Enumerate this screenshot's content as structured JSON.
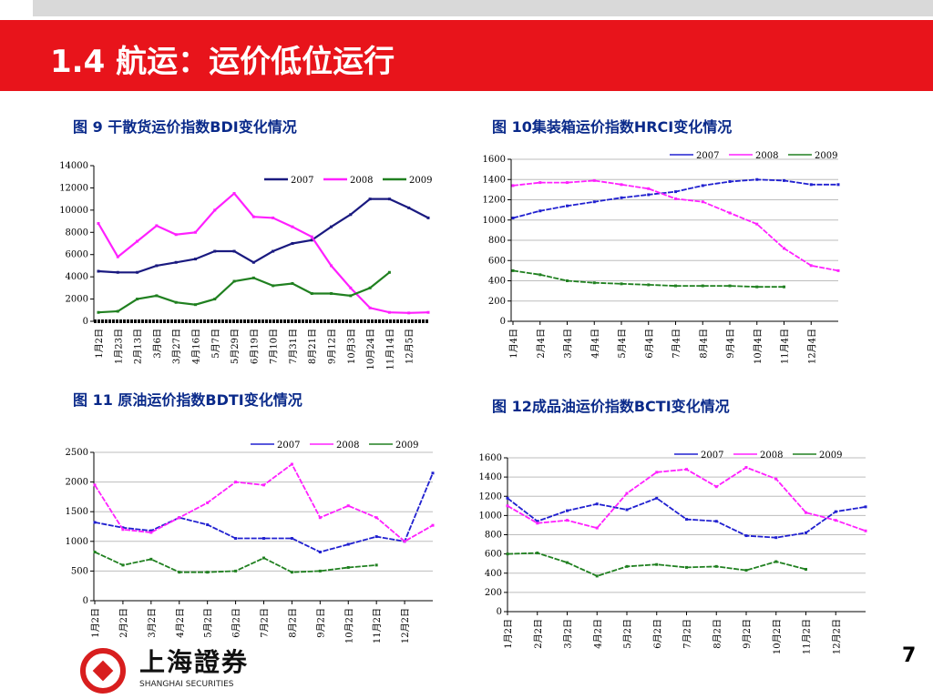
{
  "slide": {
    "title": "1.4 航运：运价低位运行",
    "page_number": "7",
    "logo": {
      "cn": "上海證券",
      "en": "SHANGHAI SECURITIES"
    }
  },
  "colors": {
    "red_bar": "#e8141b",
    "s2007_bdi": "#1a1a80",
    "s2007": "#2020d0",
    "s2008": "#ff20ff",
    "s2009": "#208020"
  },
  "chart_data": [
    {
      "title": "图 9 干散货运价指数BDI变化情况",
      "type": "line",
      "categories": [
        "1月2日",
        "1月23日",
        "2月13日",
        "3月6日",
        "3月27日",
        "4月16日",
        "5月7日",
        "5月29日",
        "6月19日",
        "7月10日",
        "7月31日",
        "8月21日",
        "9月12日",
        "10月3日",
        "10月24日",
        "11月14日",
        "12月5日",
        ""
      ],
      "ylim": [
        0,
        14000
      ],
      "yticks": [
        0,
        2000,
        4000,
        6000,
        8000,
        10000,
        12000,
        14000
      ],
      "grid": false,
      "legend": "top-right",
      "series": [
        {
          "name": "2007",
          "values": [
            4500,
            4400,
            4400,
            5000,
            5300,
            5600,
            6300,
            6300,
            5300,
            6300,
            7000,
            7300,
            8500,
            9600,
            11000,
            11000,
            10200,
            9300
          ]
        },
        {
          "name": "2008",
          "values": [
            8800,
            5800,
            7200,
            8600,
            7800,
            8000,
            10000,
            11500,
            9400,
            9300,
            8500,
            7600,
            5000,
            3000,
            1200,
            800,
            750,
            800
          ]
        },
        {
          "name": "2009",
          "values": [
            800,
            900,
            2000,
            2300,
            1700,
            1500,
            2000,
            3600,
            3900,
            3200,
            3400,
            2500,
            2500,
            2300,
            3000,
            4400,
            null,
            null
          ]
        }
      ]
    },
    {
      "title": "图 10集装箱运价指数HRCI变化情况",
      "type": "line",
      "categories": [
        "1月4日",
        "2月4日",
        "3月4日",
        "4月4日",
        "5月4日",
        "6月4日",
        "7月4日",
        "8月4日",
        "9月4日",
        "10月4日",
        "11月4日",
        "12月4日",
        ""
      ],
      "ylim": [
        0,
        1600
      ],
      "yticks": [
        0,
        200,
        400,
        600,
        800,
        1000,
        1200,
        1400,
        1600
      ],
      "grid": true,
      "legend": "top-right",
      "series": [
        {
          "name": "2007",
          "values": [
            1020,
            1090,
            1140,
            1180,
            1220,
            1250,
            1280,
            1340,
            1380,
            1400,
            1390,
            1350,
            1350
          ]
        },
        {
          "name": "2008",
          "values": [
            1340,
            1370,
            1370,
            1390,
            1350,
            1310,
            1210,
            1180,
            1070,
            960,
            720,
            550,
            500
          ]
        },
        {
          "name": "2009",
          "values": [
            500,
            460,
            400,
            380,
            370,
            360,
            350,
            350,
            350,
            340,
            340,
            null,
            null
          ]
        }
      ]
    },
    {
      "title": "图 11 原油运价指数BDTI变化情况",
      "type": "line",
      "categories": [
        "1月2日",
        "2月2日",
        "3月2日",
        "4月2日",
        "5月2日",
        "6月2日",
        "7月2日",
        "8月2日",
        "9月2日",
        "10月2日",
        "11月2日",
        "12月2日",
        ""
      ],
      "ylim": [
        0,
        2500
      ],
      "yticks": [
        0,
        500,
        1000,
        1500,
        2000,
        2500
      ],
      "grid": true,
      "legend": "top-right",
      "series": [
        {
          "name": "2007",
          "values": [
            1320,
            1230,
            1180,
            1400,
            1280,
            1050,
            1050,
            1050,
            820,
            950,
            1080,
            1000,
            2150
          ]
        },
        {
          "name": "2008",
          "values": [
            1950,
            1200,
            1150,
            1400,
            1650,
            2000,
            1950,
            2300,
            1400,
            1600,
            1400,
            1000,
            1270
          ]
        },
        {
          "name": "2009",
          "values": [
            820,
            600,
            700,
            480,
            480,
            500,
            720,
            480,
            500,
            560,
            600,
            null,
            null
          ]
        }
      ]
    },
    {
      "title": "图 12成品油运价指数BCTI变化情况",
      "type": "line",
      "categories": [
        "1月2日",
        "2月2日",
        "3月2日",
        "4月2日",
        "5月2日",
        "6月2日",
        "7月2日",
        "8月2日",
        "9月2日",
        "10月2日",
        "11月2日",
        "12月2日",
        ""
      ],
      "ylim": [
        0,
        1600
      ],
      "yticks": [
        0,
        200,
        400,
        600,
        800,
        1000,
        1200,
        1400,
        1600
      ],
      "grid": true,
      "legend": "top-right",
      "series": [
        {
          "name": "2007",
          "values": [
            1180,
            940,
            1050,
            1120,
            1060,
            1180,
            960,
            940,
            790,
            770,
            820,
            1040,
            1090
          ]
        },
        {
          "name": "2008",
          "values": [
            1100,
            920,
            950,
            870,
            1230,
            1450,
            1480,
            1300,
            1500,
            1380,
            1030,
            950,
            840
          ]
        },
        {
          "name": "2009",
          "values": [
            600,
            610,
            510,
            370,
            470,
            490,
            460,
            470,
            430,
            520,
            440,
            null,
            null
          ]
        }
      ]
    }
  ]
}
